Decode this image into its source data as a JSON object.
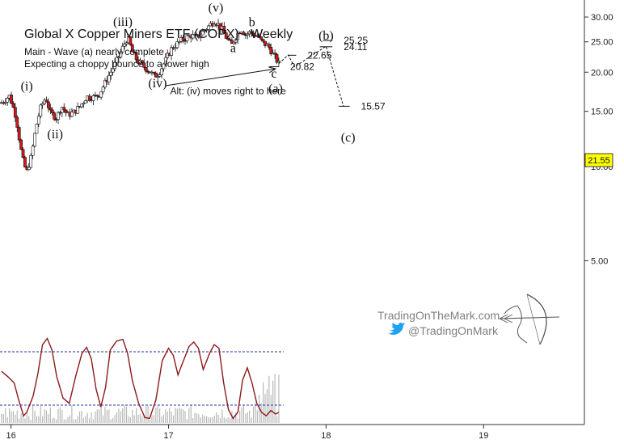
{
  "chart_data": {
    "type": "candlestick",
    "title": "Global X Copper Miners ETF (COPX) - Weekly",
    "subtitle_lines": [
      "Main - Wave (a) nearly complete",
      "Expecting a choppy bounce to a lower high"
    ],
    "y_axis": {
      "ylim": [
        1.5,
        34
      ],
      "ticks": [
        5,
        10,
        15,
        20,
        25,
        30
      ],
      "tick_labels": [
        "5.00",
        "10.00",
        "15.00",
        "20.00",
        "25.00",
        "30.00"
      ]
    },
    "x_axis": {
      "xlim": [
        15.93,
        19.64
      ],
      "ticks": [
        16,
        17,
        18,
        19
      ],
      "tick_labels": [
        "16",
        "17",
        "18",
        "19"
      ]
    },
    "last_price": {
      "value": 21.55,
      "label": "21.55"
    },
    "price_path": [
      [
        15.94,
        16.0
      ],
      [
        15.99,
        16.8
      ],
      [
        16.03,
        14.5
      ],
      [
        16.06,
        11.5
      ],
      [
        16.08,
        10.2
      ],
      [
        16.1,
        9.6
      ],
      [
        16.13,
        10.8
      ],
      [
        16.16,
        13.5
      ],
      [
        16.19,
        15.5
      ],
      [
        16.22,
        16.6
      ],
      [
        16.25,
        14.8
      ],
      [
        16.29,
        14.3
      ],
      [
        16.32,
        15.6
      ],
      [
        16.36,
        14.6
      ],
      [
        16.4,
        14.9
      ],
      [
        16.44,
        15.6
      ],
      [
        16.48,
        16.7
      ],
      [
        16.52,
        16.6
      ],
      [
        16.56,
        17.0
      ],
      [
        16.6,
        18.6
      ],
      [
        16.64,
        20.3
      ],
      [
        16.68,
        22.2
      ],
      [
        16.72,
        24.6
      ],
      [
        16.74,
        25.8
      ],
      [
        16.77,
        23.2
      ],
      [
        16.8,
        21.8
      ],
      [
        16.84,
        20.9
      ],
      [
        16.88,
        20.1
      ],
      [
        16.91,
        19.4
      ],
      [
        16.94,
        19.9
      ],
      [
        16.98,
        21.8
      ],
      [
        17.02,
        23.8
      ],
      [
        17.06,
        24.8
      ],
      [
        17.1,
        25.6
      ],
      [
        17.14,
        26.2
      ],
      [
        17.18,
        25.8
      ],
      [
        17.22,
        27.0
      ],
      [
        17.26,
        28.2
      ],
      [
        17.29,
        29.2
      ],
      [
        17.31,
        28.6
      ],
      [
        17.34,
        27.4
      ],
      [
        17.37,
        25.6
      ],
      [
        17.4,
        24.3
      ],
      [
        17.43,
        26.2
      ],
      [
        17.46,
        27.5
      ],
      [
        17.49,
        26.4
      ],
      [
        17.52,
        26.8
      ],
      [
        17.56,
        26.1
      ],
      [
        17.6,
        24.8
      ],
      [
        17.64,
        24.0
      ],
      [
        17.66,
        22.9
      ],
      [
        17.68,
        22.1
      ],
      [
        17.7,
        21.3
      ]
    ],
    "oscillator": {
      "ylim": [
        0,
        100
      ],
      "levels": [
        80,
        20
      ],
      "series": [
        [
          15.94,
          58
        ],
        [
          15.98,
          52
        ],
        [
          16.02,
          45
        ],
        [
          16.05,
          25
        ],
        [
          16.08,
          8
        ],
        [
          16.1,
          12
        ],
        [
          16.14,
          30
        ],
        [
          16.17,
          55
        ],
        [
          16.2,
          88
        ],
        [
          16.23,
          95
        ],
        [
          16.26,
          82
        ],
        [
          16.29,
          52
        ],
        [
          16.33,
          28
        ],
        [
          16.37,
          22
        ],
        [
          16.41,
          52
        ],
        [
          16.45,
          78
        ],
        [
          16.48,
          85
        ],
        [
          16.51,
          72
        ],
        [
          16.54,
          38
        ],
        [
          16.57,
          18
        ],
        [
          16.6,
          40
        ],
        [
          16.63,
          82
        ],
        [
          16.67,
          92
        ],
        [
          16.71,
          94
        ],
        [
          16.74,
          78
        ],
        [
          16.77,
          48
        ],
        [
          16.81,
          22
        ],
        [
          16.85,
          6
        ],
        [
          16.88,
          5
        ],
        [
          16.92,
          26
        ],
        [
          16.96,
          70
        ],
        [
          17.0,
          84
        ],
        [
          17.03,
          76
        ],
        [
          17.06,
          54
        ],
        [
          17.09,
          68
        ],
        [
          17.13,
          86
        ],
        [
          17.16,
          91
        ],
        [
          17.19,
          84
        ],
        [
          17.22,
          60
        ],
        [
          17.26,
          78
        ],
        [
          17.29,
          88
        ],
        [
          17.32,
          84
        ],
        [
          17.35,
          45
        ],
        [
          17.38,
          15
        ],
        [
          17.41,
          5
        ],
        [
          17.44,
          12
        ],
        [
          17.47,
          48
        ],
        [
          17.5,
          62
        ],
        [
          17.53,
          45
        ],
        [
          17.56,
          22
        ],
        [
          17.59,
          12
        ],
        [
          17.62,
          8
        ],
        [
          17.65,
          14
        ],
        [
          17.68,
          10
        ],
        [
          17.7,
          12
        ]
      ]
    },
    "wave_labels": [
      {
        "text": "(i)",
        "x": 16.1,
        "y": 17.5
      },
      {
        "text": "(ii)",
        "x": 16.28,
        "y": 12.3
      },
      {
        "text": "(iii)",
        "x": 16.71,
        "y": 28.1
      },
      {
        "text": "(iv)",
        "x": 16.93,
        "y": 17.9
      },
      {
        "text": "(v)",
        "x": 17.3,
        "y": 31.2
      },
      {
        "text": "a",
        "x": 17.41,
        "y": 23.2
      },
      {
        "text": "b",
        "x": 17.53,
        "y": 28.0
      },
      {
        "text": "c",
        "x": 17.67,
        "y": 19.2
      },
      {
        "text": "(a)",
        "x": 17.68,
        "y": 17.2
      },
      {
        "text": "(b)",
        "x": 18.0,
        "y": 25.4
      },
      {
        "text": "(c)",
        "x": 18.14,
        "y": 12.0
      }
    ],
    "levels": [
      {
        "label": "25.25",
        "value": 25.25,
        "x_start": 17.98,
        "x_end": 18.04
      },
      {
        "label": "24.11",
        "value": 24.11,
        "x_start": 17.96,
        "x_end": 18.04
      },
      {
        "label": "22.65",
        "value": 22.65,
        "x_start": 17.76,
        "x_end": 17.81
      },
      {
        "label": "20.82",
        "value": 20.82,
        "x_start": 17.64,
        "x_end": 17.7
      },
      {
        "label": "15.57",
        "value": 15.57,
        "x_start": 18.08,
        "x_end": 18.15
      }
    ],
    "projection": [
      [
        17.7,
        21.3
      ],
      [
        17.76,
        22.7
      ],
      [
        17.8,
        20.8
      ],
      [
        18.0,
        24.2
      ],
      [
        18.11,
        15.6
      ]
    ],
    "alt_note": {
      "text": "Alt: (iv) moves right to here",
      "from": [
        16.98,
        18.1
      ],
      "to": [
        17.68,
        20.5
      ]
    },
    "watermark": {
      "site": "TradingOnTheMark.com",
      "handle": "@TradingOnMark"
    }
  }
}
